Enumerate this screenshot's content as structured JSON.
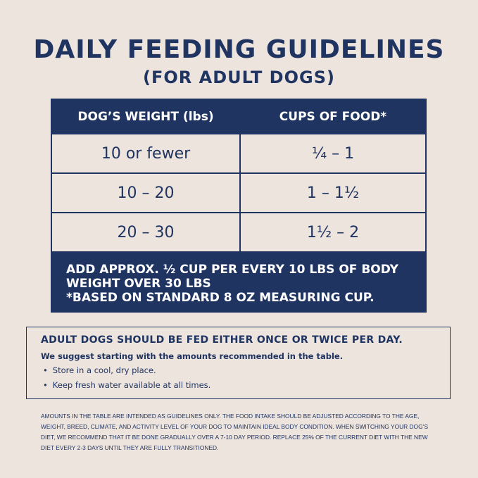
{
  "header": {
    "title": "DAILY FEEDING GUIDELINES",
    "subtitle": "(FOR ADULT DOGS)"
  },
  "table": {
    "headers": [
      "DOG’S WEIGHT (lbs)",
      "CUPS OF FOOD*"
    ],
    "rows": [
      [
        "10 or fewer",
        "¼ – 1"
      ],
      [
        "10 – 20",
        "1 – 1½"
      ],
      [
        "20 – 30",
        "1½ – 2"
      ]
    ],
    "notes": [
      "ADD APPROX. ½ CUP PER EVERY 10 LBS OF BODY WEIGHT OVER 30 LBS",
      "*BASED ON STANDARD 8 OZ MEASURING CUP."
    ]
  },
  "info": {
    "heading": "ADULT DOGS SHOULD BE FED EITHER ONCE OR TWICE PER DAY.",
    "suggestion": "We suggest starting with the amounts recommended in the table.",
    "bullets": [
      "Store in a cool, dry place.",
      "Keep fresh water available at all times."
    ]
  },
  "fine_print": "AMOUNTS IN THE TABLE ARE INTENDED AS GUIDELINES ONLY. THE FOOD INTAKE SHOULD BE ADJUSTED ACCORDING TO THE AGE, WEIGHT, BREED, CLIMATE, AND ACTIVITY LEVEL OF YOUR DOG TO MAINTAIN IDEAL BODY CONDITION. WHEN SWITCHING YOUR DOG’S DIET, WE RECOMMEND THAT IT BE DONE GRADUALLY OVER A 7-10 DAY PERIOD. REPLACE 25% OF THE CURRENT DIET WITH THE NEW DIET EVERY 2-3 DAYS UNTIL THEY ARE FULLY TRANSITIONED."
}
